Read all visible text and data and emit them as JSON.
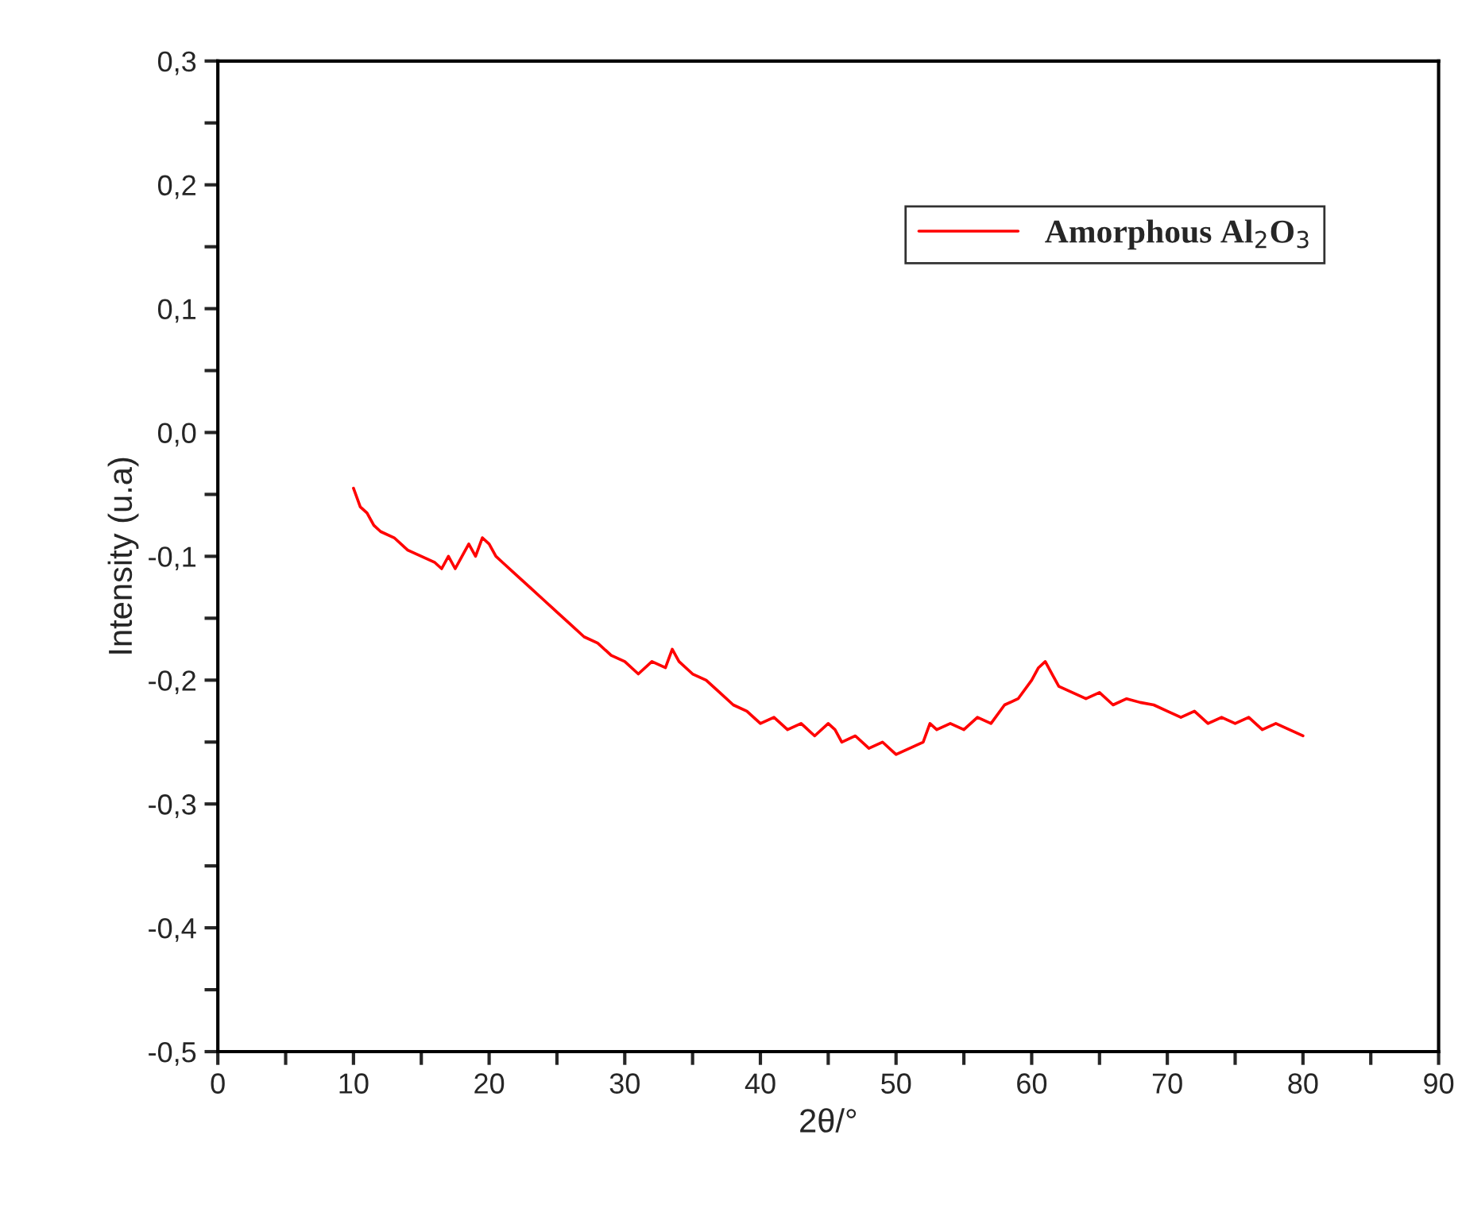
{
  "chart_data": {
    "type": "line",
    "xlabel": "2θ/°",
    "ylabel": "Intensity (u.a)",
    "series": [
      {
        "name": "Amorphous Al$_{2}$O$_{3}$",
        "color": "#ff0000",
        "x": [
          10,
          10.5,
          11,
          11.5,
          12,
          13,
          14,
          15,
          16,
          16.5,
          17,
          17.5,
          18,
          18.5,
          19,
          19.5,
          20,
          20.5,
          21,
          22,
          23,
          24,
          25,
          26,
          27,
          28,
          29,
          30,
          31,
          32,
          33,
          33.5,
          34,
          35,
          36,
          37,
          38,
          39,
          40,
          41,
          42,
          43,
          44,
          45,
          45.5,
          46,
          47,
          48,
          49,
          50,
          51,
          52,
          52.5,
          53,
          54,
          55,
          56,
          57,
          58,
          59,
          60,
          60.5,
          61,
          61.5,
          62,
          63,
          64,
          65,
          66,
          67,
          68,
          69,
          70,
          71,
          72,
          73,
          74,
          75,
          76,
          77,
          78,
          79,
          80
        ],
        "values": [
          -0.045,
          -0.06,
          -0.065,
          -0.075,
          -0.08,
          -0.085,
          -0.095,
          -0.1,
          -0.105,
          -0.11,
          -0.1,
          -0.11,
          -0.1,
          -0.09,
          -0.1,
          -0.085,
          -0.09,
          -0.1,
          -0.105,
          -0.115,
          -0.125,
          -0.135,
          -0.145,
          -0.155,
          -0.165,
          -0.17,
          -0.18,
          -0.185,
          -0.195,
          -0.185,
          -0.19,
          -0.175,
          -0.185,
          -0.195,
          -0.2,
          -0.21,
          -0.22,
          -0.225,
          -0.235,
          -0.23,
          -0.24,
          -0.235,
          -0.245,
          -0.235,
          -0.24,
          -0.25,
          -0.245,
          -0.255,
          -0.25,
          -0.26,
          -0.255,
          -0.25,
          -0.235,
          -0.24,
          -0.235,
          -0.24,
          -0.23,
          -0.235,
          -0.22,
          -0.215,
          -0.2,
          -0.19,
          -0.185,
          -0.195,
          -0.205,
          -0.21,
          -0.215,
          -0.21,
          -0.22,
          -0.215,
          -0.218,
          -0.22,
          -0.225,
          -0.23,
          -0.225,
          -0.235,
          -0.23,
          -0.235,
          -0.23,
          -0.24,
          -0.235,
          -0.24,
          -0.245
        ]
      }
    ],
    "xlim": [
      0,
      90
    ],
    "xticks": [
      0,
      {
        "value": 5,
        "label": null
      },
      10,
      {
        "value": 15,
        "label": null
      },
      20,
      {
        "value": 25,
        "label": null
      },
      30,
      {
        "value": 35,
        "label": null
      },
      40,
      {
        "value": 45,
        "label": null
      },
      50,
      {
        "value": 55,
        "label": null
      },
      60,
      {
        "value": 65,
        "label": null
      },
      70,
      {
        "value": 75,
        "label": null
      },
      80,
      {
        "value": 85,
        "label": null
      },
      90
    ],
    "ylim": [
      -0.5,
      0.3
    ],
    "yticks": [
      {
        "value": -0.5,
        "label": "-0,5"
      },
      {
        "value": -0.45,
        "label": null
      },
      {
        "value": -0.4,
        "label": "-0,4"
      },
      {
        "value": -0.35,
        "label": null
      },
      {
        "value": -0.3,
        "label": "-0,3"
      },
      {
        "value": -0.25,
        "label": null
      },
      {
        "value": -0.2,
        "label": "-0,2"
      },
      {
        "value": -0.15,
        "label": null
      },
      {
        "value": -0.1,
        "label": "-0,1"
      },
      {
        "value": -0.05,
        "label": null
      },
      {
        "value": 0,
        "label": "0,0"
      },
      {
        "value": 0.05,
        "label": null
      },
      {
        "value": 0.1,
        "label": "0,1"
      },
      {
        "value": 0.15,
        "label": null
      },
      {
        "value": 0.2,
        "label": "0,2"
      },
      {
        "value": 0.25,
        "label": null
      },
      {
        "value": 0.3,
        "label": "0,3"
      }
    ],
    "legend": "top right",
    "grid": false
  }
}
